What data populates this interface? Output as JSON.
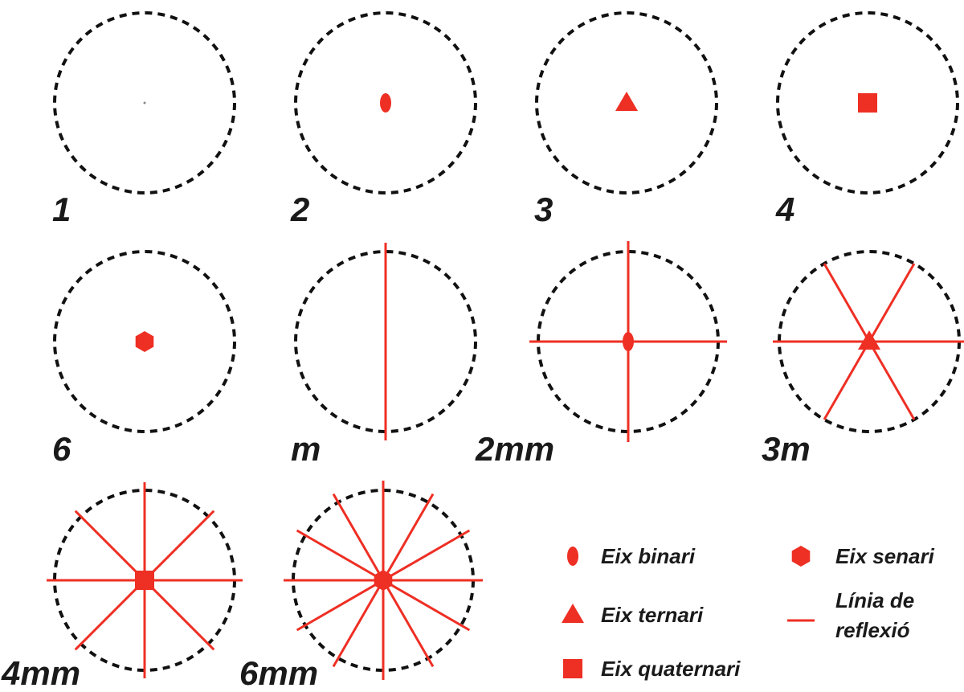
{
  "diagrams": [
    {
      "label": "1"
    },
    {
      "label": "2"
    },
    {
      "label": "3"
    },
    {
      "label": "4"
    },
    {
      "label": "6"
    },
    {
      "label": "m"
    },
    {
      "label": "2mm"
    },
    {
      "label": "3m"
    },
    {
      "label": "4mm"
    },
    {
      "label": "6mm"
    }
  ],
  "legend": [
    {
      "label": "Eix binari"
    },
    {
      "label": "Eix senari"
    },
    {
      "label": "Eix ternari"
    },
    {
      "label_lines": [
        "Línia de",
        "reflexió"
      ]
    },
    {
      "label": "Eix quaternari"
    }
  ]
}
